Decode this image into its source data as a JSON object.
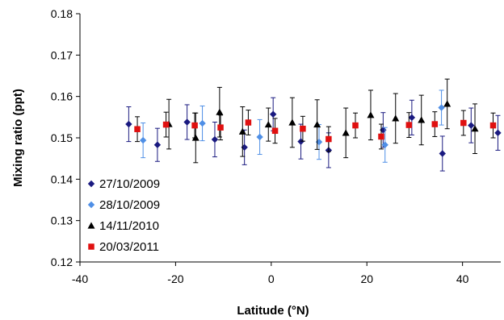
{
  "chart_data": {
    "type": "scatter",
    "xlabel": "Latitude (°N)",
    "ylabel": "Mixing ratio (ppt)",
    "xlim": [
      -40,
      48
    ],
    "ylim": [
      0.12,
      0.18
    ],
    "x_ticks": [
      "-40",
      "-20",
      "0",
      "20",
      "40"
    ],
    "x_tick_values": [
      -40,
      -20,
      0,
      20,
      40
    ],
    "y_ticks": [
      "0.12",
      "0.13",
      "0.14",
      "0.15",
      "0.16",
      "0.17",
      "0.18"
    ],
    "y_tick_values": [
      0.12,
      0.13,
      0.14,
      0.15,
      0.16,
      0.17,
      0.18
    ],
    "grid": false,
    "legend_position": "bottom-left",
    "series": [
      {
        "name": "27/10/2009",
        "marker": "diamond",
        "color": "#1a1a80",
        "points": [
          {
            "x": -29.8,
            "y": 0.1533,
            "err": 0.0042
          },
          {
            "x": -23.8,
            "y": 0.1483,
            "err": 0.004
          },
          {
            "x": -17.6,
            "y": 0.1538,
            "err": 0.0042
          },
          {
            "x": -11.8,
            "y": 0.1496,
            "err": 0.0042
          },
          {
            "x": -5.6,
            "y": 0.1477,
            "err": 0.0042
          },
          {
            "x": 0.4,
            "y": 0.1557,
            "err": 0.004
          },
          {
            "x": 6.2,
            "y": 0.1491,
            "err": 0.0042
          },
          {
            "x": 12.0,
            "y": 0.147,
            "err": 0.0042
          },
          {
            "x": 23.4,
            "y": 0.1519,
            "err": 0.0042
          },
          {
            "x": 29.4,
            "y": 0.1549,
            "err": 0.0042
          },
          {
            "x": 35.8,
            "y": 0.1462,
            "err": 0.0042
          },
          {
            "x": 41.8,
            "y": 0.153,
            "err": 0.0042
          },
          {
            "x": 47.4,
            "y": 0.1512,
            "err": 0.0042
          }
        ]
      },
      {
        "name": "28/10/2009",
        "marker": "diamond",
        "color": "#4f8fe6",
        "points": [
          {
            "x": -26.8,
            "y": 0.1494,
            "err": 0.0042
          },
          {
            "x": -14.4,
            "y": 0.1535,
            "err": 0.0042
          },
          {
            "x": -2.4,
            "y": 0.1502,
            "err": 0.0042
          },
          {
            "x": 10.0,
            "y": 0.149,
            "err": 0.0042
          },
          {
            "x": 23.8,
            "y": 0.1483,
            "err": 0.0042
          },
          {
            "x": 35.6,
            "y": 0.1573,
            "err": 0.0042
          }
        ]
      },
      {
        "name": "14/11/2010",
        "marker": "triangle",
        "color": "#000000",
        "points": [
          {
            "x": -21.4,
            "y": 0.1533,
            "err": 0.006
          },
          {
            "x": -15.8,
            "y": 0.15,
            "err": 0.006
          },
          {
            "x": -10.8,
            "y": 0.1562,
            "err": 0.006
          },
          {
            "x": -6.0,
            "y": 0.1515,
            "err": 0.006
          },
          {
            "x": -0.6,
            "y": 0.1532,
            "err": 0.004
          },
          {
            "x": 4.4,
            "y": 0.1537,
            "err": 0.006
          },
          {
            "x": 9.6,
            "y": 0.1532,
            "err": 0.006
          },
          {
            "x": 15.6,
            "y": 0.1512,
            "err": 0.006
          },
          {
            "x": 20.8,
            "y": 0.1555,
            "err": 0.006
          },
          {
            "x": 26.0,
            "y": 0.1547,
            "err": 0.006
          },
          {
            "x": 31.4,
            "y": 0.1543,
            "err": 0.006
          },
          {
            "x": 36.8,
            "y": 0.1582,
            "err": 0.006
          },
          {
            "x": 42.6,
            "y": 0.1522,
            "err": 0.006
          }
        ]
      },
      {
        "name": "20/03/2011",
        "marker": "square",
        "color": "#e01010",
        "points": [
          {
            "x": -28.0,
            "y": 0.1521,
            "err": 0.003
          },
          {
            "x": -22.0,
            "y": 0.1532,
            "err": 0.003
          },
          {
            "x": -16.0,
            "y": 0.153,
            "err": 0.003
          },
          {
            "x": -10.6,
            "y": 0.1525,
            "err": 0.003
          },
          {
            "x": -4.8,
            "y": 0.1537,
            "err": 0.003
          },
          {
            "x": 0.8,
            "y": 0.1517,
            "err": 0.003
          },
          {
            "x": 6.6,
            "y": 0.1522,
            "err": 0.003
          },
          {
            "x": 12.0,
            "y": 0.1497,
            "err": 0.003
          },
          {
            "x": 17.6,
            "y": 0.153,
            "err": 0.003
          },
          {
            "x": 23.0,
            "y": 0.1503,
            "err": 0.003
          },
          {
            "x": 28.8,
            "y": 0.1531,
            "err": 0.003
          },
          {
            "x": 34.2,
            "y": 0.1533,
            "err": 0.003
          },
          {
            "x": 40.2,
            "y": 0.1536,
            "err": 0.003
          },
          {
            "x": 46.4,
            "y": 0.153,
            "err": 0.003
          }
        ]
      }
    ]
  }
}
